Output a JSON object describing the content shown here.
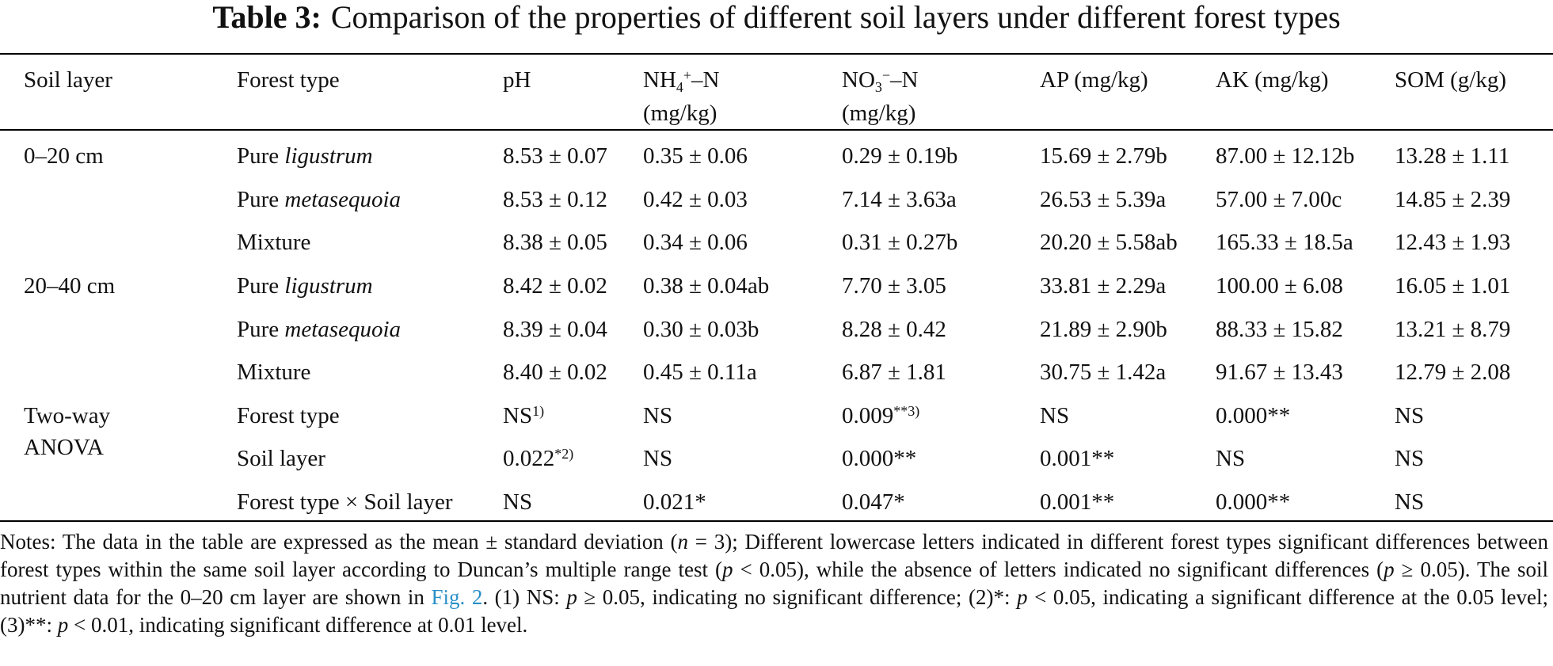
{
  "title": {
    "label": "Table 3:",
    "text": "Comparison of the properties of different soil layers under different forest types"
  },
  "headers": {
    "soil_layer": "Soil layer",
    "forest_type": "Forest type",
    "ph": "pH",
    "nh4_base": "NH",
    "nh4_sub": "4",
    "nh4_sup": "+",
    "nh4_tail": "–N",
    "no3_base": "NO",
    "no3_sub": "3",
    "no3_sup": "−",
    "no3_tail": "–N",
    "unit": "(mg/kg)",
    "ap": "AP (mg/kg)",
    "ak": "AK (mg/kg)",
    "som": "SOM (g/kg)"
  },
  "rows": [
    {
      "layer": "0–20 cm",
      "ft_prefix": "Pure ",
      "ft_italic": "ligustrum",
      "ph": "8.53 ± 0.07",
      "nh4": "0.35 ± 0.06",
      "no3": "0.29 ± 0.19b",
      "ap": "15.69 ± 2.79b",
      "ak": "87.00 ± 12.12b",
      "som": "13.28 ± 1.11"
    },
    {
      "layer": "",
      "ft_prefix": "Pure ",
      "ft_italic": "metasequoia",
      "ph": "8.53 ± 0.12",
      "nh4": "0.42 ± 0.03",
      "no3": "7.14 ± 3.63a",
      "ap": "26.53 ± 5.39a",
      "ak": "57.00 ± 7.00c",
      "som": "14.85 ± 2.39"
    },
    {
      "layer": "",
      "ft_prefix": "Mixture",
      "ft_italic": "",
      "ph": "8.38 ± 0.05",
      "nh4": "0.34 ± 0.06",
      "no3": "0.31 ± 0.27b",
      "ap": "20.20 ± 5.58ab",
      "ak": "165.33 ± 18.5a",
      "som": "12.43 ± 1.93"
    },
    {
      "layer": "20–40 cm",
      "ft_prefix": "Pure ",
      "ft_italic": "ligustrum",
      "ph": "8.42 ± 0.02",
      "nh4": "0.38 ± 0.04ab",
      "no3": "7.70 ± 3.05",
      "ap": "33.81 ± 2.29a",
      "ak": "100.00 ± 6.08",
      "som": "16.05 ± 1.01"
    },
    {
      "layer": "",
      "ft_prefix": "Pure ",
      "ft_italic": "metasequoia",
      "ph": "8.39 ± 0.04",
      "nh4": "0.30 ± 0.03b",
      "no3": "8.28 ± 0.42",
      "ap": "21.89 ± 2.90b",
      "ak": "88.33 ± 15.82",
      "som": "13.21 ± 8.79"
    },
    {
      "layer": "",
      "ft_prefix": "Mixture",
      "ft_italic": "",
      "ph": "8.40 ± 0.02",
      "nh4": "0.45 ± 0.11a",
      "no3": "6.87 ± 1.81",
      "ap": "30.75 ± 1.42a",
      "ak": "91.67 ± 13.43",
      "som": "12.79 ± 2.08"
    }
  ],
  "anova": {
    "label_line1": "Two-way",
    "label_line2": "ANOVA",
    "rows": [
      {
        "factor": "Forest type",
        "ph": "NS",
        "ph_sup": "1)",
        "nh4": "NS",
        "nh4_sup": "",
        "no3": "0.009",
        "no3_sup": "**3)",
        "ap": "NS",
        "ak": "0.000**",
        "som": "NS"
      },
      {
        "factor": "Soil layer",
        "ph": "0.022",
        "ph_sup": "*2)",
        "nh4": "NS",
        "nh4_sup": "",
        "no3": "0.000**",
        "no3_sup": "",
        "ap": "0.001**",
        "ak": "NS",
        "som": "NS"
      },
      {
        "factor": "Forest type × Soil layer",
        "ph": "NS",
        "ph_sup": "",
        "nh4": "0.021*",
        "nh4_sup": "",
        "no3": "0.047*",
        "no3_sup": "",
        "ap": "0.001**",
        "ak": "0.000**",
        "som": "NS"
      }
    ]
  },
  "notes": {
    "part1": "Notes: The data in the table are expressed as the mean ± standard deviation (",
    "n_var": "n",
    "part2": " = 3); Different lowercase letters indicated in different forest types significant differences between forest types within the same soil layer according to Duncan’s multiple range test (",
    "p1": "p",
    "part3": " < 0.05), while the absence of letters indicated no significant differences (",
    "p2": "p",
    "part4": " ≥ 0.05). The soil nutrient data for the 0–20 cm layer are shown in ",
    "fig_link": "Fig. 2",
    "part5": ". (1) NS: ",
    "p3": "p",
    "part6": " ≥ 0.05, indicating no significant difference; (2)*: ",
    "p4": "p",
    "part7": " < 0.05, indicating a significant difference at the 0.05 level; (3)**: ",
    "p5": "p",
    "part8": " < 0.01, indicating significant difference at 0.01 level.",
    "link_color": "#2a8fc7"
  }
}
